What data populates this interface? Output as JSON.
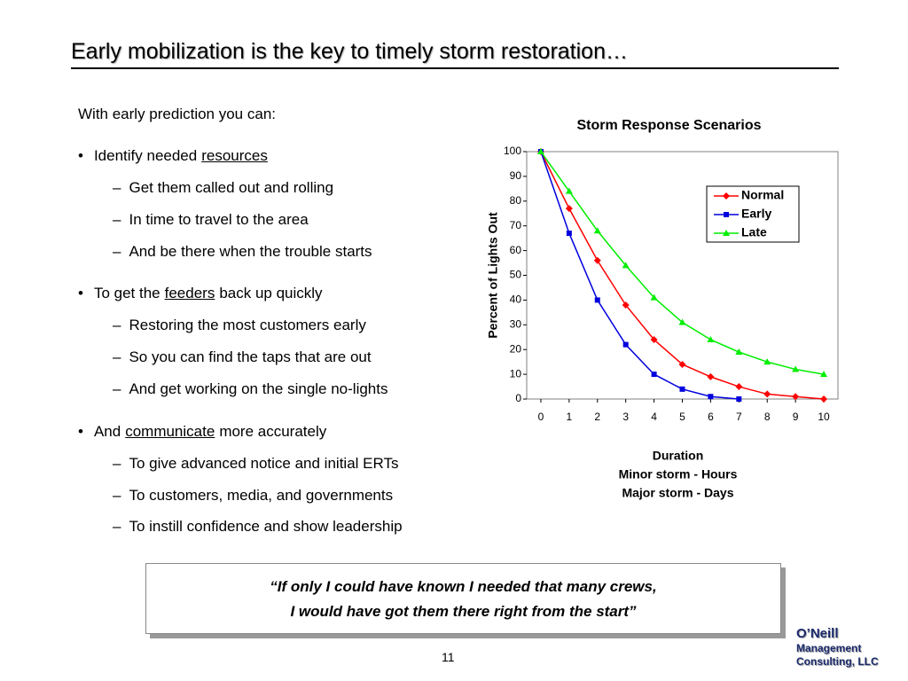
{
  "slide": {
    "title": "Early mobilization is the key to timely storm restoration…",
    "intro": "With early prediction you can:",
    "bullets": [
      {
        "before": "Identify needed",
        "underlined": "resources",
        "subs": [
          "Get them called out and rolling",
          "In time to travel to the area",
          "And be there when the trouble starts"
        ]
      },
      {
        "before": "To get the",
        "underlined": "feeders",
        "after": "back up quickly",
        "subs": [
          "Restoring the most customers early",
          "So you can find the taps that are out",
          "And get working on the single no-lights"
        ]
      },
      {
        "before": "And",
        "underlined": "communicate",
        "after": "more accurately",
        "subs": [
          "To give advanced notice and initial ERTs",
          "To customers, media, and governments",
          "To instill confidence and show leadership"
        ]
      }
    ],
    "quote": [
      "“If only I could have known I needed that many crews,",
      "I would have got them there right from the start”"
    ],
    "page_number": "11",
    "logo": [
      "O’Neill",
      "Management",
      "Consulting, LLC"
    ]
  },
  "chart_data": {
    "type": "line",
    "title": "Storm Response Scenarios",
    "ylabel": "Percent of Lights Out",
    "xlabel": [
      "Duration",
      "Minor storm - Hours",
      "Major storm - Days"
    ],
    "x": [
      0,
      1,
      2,
      3,
      4,
      5,
      6,
      7,
      8,
      9,
      10
    ],
    "series": [
      {
        "name": "Normal",
        "color": "#ff0000",
        "marker": "diamond",
        "values": [
          100,
          77,
          56,
          38,
          24,
          14,
          9,
          5,
          2,
          1,
          0
        ]
      },
      {
        "name": "Early",
        "color": "#0000dd",
        "marker": "square",
        "values": [
          100,
          67,
          40,
          22,
          10,
          4,
          1,
          0,
          null,
          null,
          null
        ]
      },
      {
        "name": "Late",
        "color": "#00ee00",
        "marker": "triangle",
        "values": [
          100,
          84,
          68,
          54,
          41,
          31,
          24,
          19,
          15,
          12,
          10
        ]
      }
    ],
    "xlim": [
      -0.5,
      10.5
    ],
    "xticks": [
      0,
      1,
      2,
      3,
      4,
      5,
      6,
      7,
      8,
      9,
      10
    ],
    "ylim": [
      0,
      100
    ],
    "yticks": [
      0,
      10,
      20,
      30,
      40,
      50,
      60,
      70,
      80,
      90,
      100
    ],
    "grid": false,
    "legend": "upper right"
  }
}
